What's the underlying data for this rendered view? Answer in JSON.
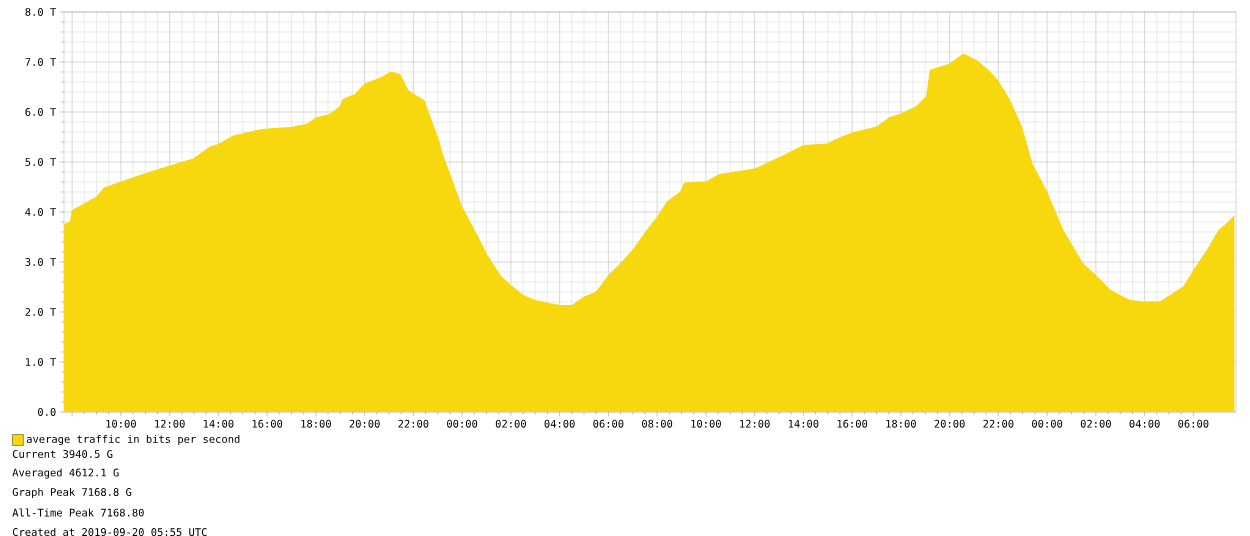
{
  "chart_data": {
    "type": "area",
    "xlim": [
      "2019-09-18T07:40",
      "2019-09-20T07:45"
    ],
    "ylim": [
      0,
      8
    ],
    "xticks": [
      {
        "value": "2019-09-18T08:00",
        "label": null
      },
      {
        "value": "2019-09-18T10:00",
        "label": "10:00"
      },
      {
        "value": "2019-09-18T12:00",
        "label": "12:00"
      },
      {
        "value": "2019-09-18T14:00",
        "label": "14:00"
      },
      {
        "value": "2019-09-18T16:00",
        "label": "16:00"
      },
      {
        "value": "2019-09-18T18:00",
        "label": "18:00"
      },
      {
        "value": "2019-09-18T20:00",
        "label": "20:00"
      },
      {
        "value": "2019-09-18T22:00",
        "label": "22:00"
      },
      {
        "value": "2019-09-19T00:00",
        "label": "00:00"
      },
      {
        "value": "2019-09-19T02:00",
        "label": "02:00"
      },
      {
        "value": "2019-09-19T04:00",
        "label": "04:00"
      },
      {
        "value": "2019-09-19T06:00",
        "label": "06:00"
      },
      {
        "value": "2019-09-19T08:00",
        "label": "08:00"
      },
      {
        "value": "2019-09-19T10:00",
        "label": "10:00"
      },
      {
        "value": "2019-09-19T12:00",
        "label": "12:00"
      },
      {
        "value": "2019-09-19T14:00",
        "label": "14:00"
      },
      {
        "value": "2019-09-19T16:00",
        "label": "16:00"
      },
      {
        "value": "2019-09-19T18:00",
        "label": "18:00"
      },
      {
        "value": "2019-09-19T20:00",
        "label": "20:00"
      },
      {
        "value": "2019-09-19T22:00",
        "label": "22:00"
      },
      {
        "value": "2019-09-20T00:00",
        "label": "00:00"
      },
      {
        "value": "2019-09-20T02:00",
        "label": "02:00"
      },
      {
        "value": "2019-09-20T04:00",
        "label": "04:00"
      },
      {
        "value": "2019-09-20T06:00",
        "label": "06:00"
      }
    ],
    "yticks": [
      {
        "value": 0,
        "label": "0.0"
      },
      {
        "value": 1,
        "label": "1.0 T"
      },
      {
        "value": 2,
        "label": "2.0 T"
      },
      {
        "value": 3,
        "label": "3.0 T"
      },
      {
        "value": 4,
        "label": "4.0 T"
      },
      {
        "value": 5,
        "label": "5.0 T"
      },
      {
        "value": 6,
        "label": "6.0 T"
      },
      {
        "value": 7,
        "label": "7.0 T"
      },
      {
        "value": 8,
        "label": "8.0 T"
      }
    ],
    "grid": true,
    "legend": "bottom",
    "series": [
      {
        "name": "average traffic in bits per second",
        "color": "#f7d80f",
        "x": [
          "2019-09-18T07:40",
          "2019-09-18T07:54",
          "2019-09-18T08:00",
          "2019-09-18T09:00",
          "2019-09-18T09:18",
          "2019-09-18T10:00",
          "2019-09-18T10:54",
          "2019-09-18T12:00",
          "2019-09-18T12:58",
          "2019-09-18T13:39",
          "2019-09-18T14:00",
          "2019-09-18T14:36",
          "2019-09-18T15:34",
          "2019-09-18T16:00",
          "2019-09-18T16:56",
          "2019-09-18T17:36",
          "2019-09-18T18:00",
          "2019-09-18T18:33",
          "2019-09-18T18:58",
          "2019-09-18T19:06",
          "2019-09-18T19:36",
          "2019-09-18T20:00",
          "2019-09-18T20:39",
          "2019-09-18T21:04",
          "2019-09-18T21:28",
          "2019-09-18T21:48",
          "2019-09-18T22:00",
          "2019-09-18T22:27",
          "2019-09-18T23:03",
          "2019-09-18T23:12",
          "2019-09-18T23:36",
          "2019-09-19T00:00",
          "2019-09-19T00:44",
          "2019-09-19T01:00",
          "2019-09-19T01:34",
          "2019-09-19T02:00",
          "2019-09-19T02:31",
          "2019-09-19T03:00",
          "2019-09-19T03:29",
          "2019-09-19T04:00",
          "2019-09-19T04:30",
          "2019-09-19T05:00",
          "2019-09-19T05:30",
          "2019-09-19T06:00",
          "2019-09-19T06:29",
          "2019-09-19T07:02",
          "2019-09-19T07:34",
          "2019-09-19T08:00",
          "2019-09-19T08:24",
          "2019-09-19T08:57",
          "2019-09-19T09:06",
          "2019-09-19T10:00",
          "2019-09-19T10:33",
          "2019-09-19T12:00",
          "2019-09-19T13:04",
          "2019-09-19T14:00",
          "2019-09-19T14:58",
          "2019-09-19T15:31",
          "2019-09-19T16:00",
          "2019-09-19T17:00",
          "2019-09-19T17:30",
          "2019-09-19T18:00",
          "2019-09-19T18:38",
          "2019-09-19T19:02",
          "2019-09-19T19:11",
          "2019-09-19T20:00",
          "2019-09-19T20:34",
          "2019-09-19T21:07",
          "2019-09-19T21:36",
          "2019-09-19T22:00",
          "2019-09-19T22:29",
          "2019-09-19T22:58",
          "2019-09-19T23:24",
          "2019-09-20T00:00",
          "2019-09-20T00:40",
          "2019-09-20T01:29",
          "2019-09-20T02:00",
          "2019-09-20T02:36",
          "2019-09-20T03:24",
          "2019-09-20T04:00",
          "2019-09-20T04:38",
          "2019-09-20T05:02",
          "2019-09-20T05:35",
          "2019-09-20T06:00",
          "2019-09-20T06:33",
          "2019-09-20T07:02",
          "2019-09-20T07:26",
          "2019-09-20T07:41"
        ],
        "values": [
          3.76,
          3.81,
          4.04,
          4.31,
          4.49,
          4.61,
          4.76,
          4.93,
          5.07,
          5.31,
          5.36,
          5.53,
          5.64,
          5.67,
          5.7,
          5.76,
          5.89,
          5.96,
          6.11,
          6.26,
          6.36,
          6.57,
          6.69,
          6.81,
          6.76,
          6.43,
          6.37,
          6.24,
          5.44,
          5.17,
          4.64,
          4.11,
          3.44,
          3.17,
          2.74,
          2.54,
          2.34,
          2.24,
          2.19,
          2.14,
          2.14,
          2.31,
          2.41,
          2.74,
          2.97,
          3.27,
          3.64,
          3.91,
          4.21,
          4.41,
          4.59,
          4.61,
          4.76,
          4.87,
          5.11,
          5.34,
          5.37,
          5.5,
          5.59,
          5.71,
          5.89,
          5.97,
          6.12,
          6.31,
          6.84,
          6.97,
          7.17,
          7.04,
          6.84,
          6.63,
          6.24,
          5.71,
          4.97,
          4.41,
          3.64,
          2.97,
          2.74,
          2.44,
          2.24,
          2.21,
          2.21,
          2.34,
          2.51,
          2.84,
          3.24,
          3.64,
          3.81,
          3.94
        ]
      }
    ],
    "annotations": [
      "Current 3940.5 G",
      "Averaged 4612.1 G",
      "Graph Peak 7168.8 G",
      "All-Time Peak 7168.80",
      "Created at 2019-09-20 05:55 UTC"
    ]
  }
}
